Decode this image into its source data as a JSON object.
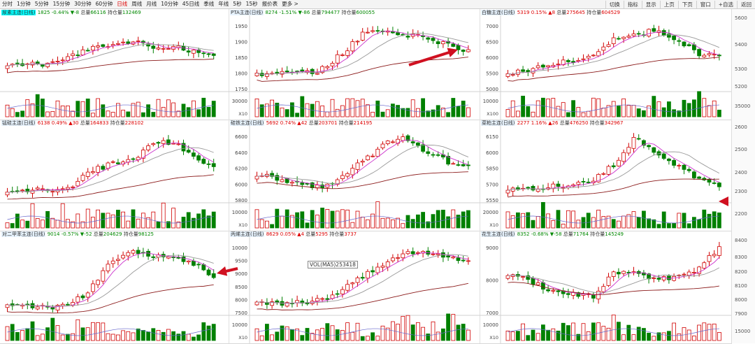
{
  "toolbar": {
    "periods": [
      "分时",
      "1分钟",
      "5分钟",
      "15分钟",
      "30分钟",
      "60分钟",
      "日线",
      "周线",
      "月线",
      "10分钟",
      "45日线",
      "季线",
      "年线",
      "5秒",
      "15秒",
      "报价表",
      "更多 >"
    ],
    "active_period": "日线",
    "right_buttons": [
      "切换",
      "指标",
      "显示",
      "上页",
      "下页",
      "窗口",
      "+自选",
      "返回"
    ]
  },
  "panels": [
    {
      "name": "尿素主连(日线)",
      "last": "1825",
      "pct": "-0.44%",
      "chg": "▼-8",
      "vol_label": "总量",
      "vol": "66116",
      "oi_label": "持仓量",
      "oi": "132469",
      "dir": "dn",
      "highlight": true,
      "yticks": [],
      "voltick": "",
      "mult": ""
    },
    {
      "name": "PTA主连(日线)",
      "last": "8274",
      "pct": "-1.51%",
      "chg": "▼-86",
      "vol_label": "总量",
      "vol": "794477",
      "oi_label": "持仓量",
      "oi": "600055",
      "dir": "dn",
      "highlight": false,
      "yticks": [
        "1950",
        "1900",
        "1850",
        "1800",
        "1750"
      ],
      "voltick": "30000",
      "mult": "X10"
    },
    {
      "name": "白糖主连(日线)",
      "last": "5319",
      "pct": "0.15%",
      "chg": "▲8",
      "vol_label": "总量",
      "vol": "275645",
      "oi_label": "持仓量",
      "oi": "604529",
      "dir": "up",
      "highlight": false,
      "yticks": [
        "7000",
        "6500",
        "6000",
        "5500",
        "5000"
      ],
      "voltick": "10000",
      "mult": "X100"
    },
    {
      "name": "锰硅主连(日线)",
      "last": "6138",
      "pct": "0.49%",
      "chg": "▲30",
      "vol_label": "总量",
      "vol": "164833",
      "oi_label": "持仓量",
      "oi": "228102",
      "dir": "up",
      "highlight": false,
      "yticks": [],
      "voltick": "",
      "mult": ""
    },
    {
      "name": "硅铁主连(日线)",
      "last": "5692",
      "pct": "0.74%",
      "chg": "▲42",
      "vol_label": "总量",
      "vol": "203701",
      "oi_label": "持仓量",
      "oi": "214195",
      "dir": "up",
      "highlight": false,
      "yticks": [
        "6600",
        "6400",
        "6200",
        "6000",
        "5800"
      ],
      "voltick": "10000",
      "mult": "X10"
    },
    {
      "name": "菜粕主连(日线)",
      "last": "2277",
      "pct": "1.16%",
      "chg": "▲26",
      "vol_label": "总量",
      "vol": "476250",
      "oi_label": "持仓量",
      "oi": "342967",
      "dir": "up",
      "highlight": false,
      "yticks": [
        "6150",
        "6000",
        "5850",
        "5700",
        "5550"
      ],
      "voltick": "20000",
      "mult": "X10"
    },
    {
      "name": "对二甲苯主连(日线)",
      "last": "9014",
      "pct": "-0.57%",
      "chg": "▼-52",
      "vol_label": "总量",
      "vol": "204629",
      "oi_label": "持仓量",
      "oi": "98125",
      "dir": "dn",
      "highlight": false,
      "yticks": [],
      "voltick": "",
      "mult": ""
    },
    {
      "name": "丙烯主连(日线)",
      "last": "8629",
      "pct": "0.05%",
      "chg": "▲4",
      "vol_label": "总量",
      "vol": "5295",
      "oi_label": "持仓量",
      "oi": "3737",
      "dir": "up",
      "highlight": false,
      "yticks": [
        "10000",
        "9500",
        "9000",
        "8500",
        "8000",
        "7500"
      ],
      "voltick": "10000",
      "mult": "X10"
    },
    {
      "name": "花生主连(日线)",
      "last": "8352",
      "pct": "-0.68%",
      "chg": "▼-58",
      "vol_label": "总量",
      "vol": "71764",
      "oi_label": "持仓量",
      "oi": "145249",
      "dir": "dn",
      "highlight": false,
      "yticks": [
        "9000",
        "8000",
        "7000"
      ],
      "voltick": "10000",
      "mult": "X10"
    }
  ],
  "right_axis": {
    "p3": [
      "5600",
      "5400",
      "5300",
      "5200",
      "35000"
    ],
    "p6": [
      "2600",
      "2500",
      "2400",
      "2300",
      "2200"
    ],
    "p9": [
      "8400",
      "8300",
      "8200",
      "8100",
      "8000",
      "7900",
      "15000"
    ]
  },
  "vol_tooltip": "VOL(MA5)253418",
  "colors": {
    "up": "#d00000",
    "down": "#008000",
    "ma5": "#cc33cc",
    "ma10": "#999999",
    "ma20": "#8b1a1a",
    "arrow": "#d01020"
  }
}
